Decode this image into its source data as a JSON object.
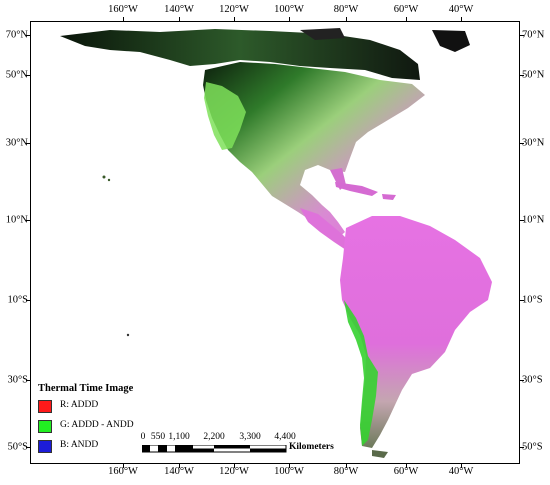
{
  "map": {
    "longitude_labels": [
      "160°W",
      "140°W",
      "120°W",
      "100°W",
      "80°W",
      "60°W",
      "40°W"
    ],
    "latitude_labels": [
      "70°N",
      "50°N",
      "30°N",
      "10°N",
      "10°S",
      "30°S",
      "50°S"
    ]
  },
  "legend": {
    "title": "Thermal Time Image",
    "items": [
      {
        "label": "R: ADDD",
        "color": "#ff1a1a"
      },
      {
        "label": "G: ADDD - ANDD",
        "color": "#22ee22"
      },
      {
        "label": "B: ANDD",
        "color": "#1c1cd8"
      }
    ]
  },
  "scale_bar": {
    "labels": [
      "0",
      "550",
      "1,100",
      "2,200",
      "3,300",
      "4,400"
    ],
    "unit": "Kilometers"
  },
  "colors": {
    "land_magenta": "#e070e0",
    "land_green": "#66d14a",
    "land_dark": "#1a2a1a",
    "land_pale": "#e8c9c0"
  }
}
